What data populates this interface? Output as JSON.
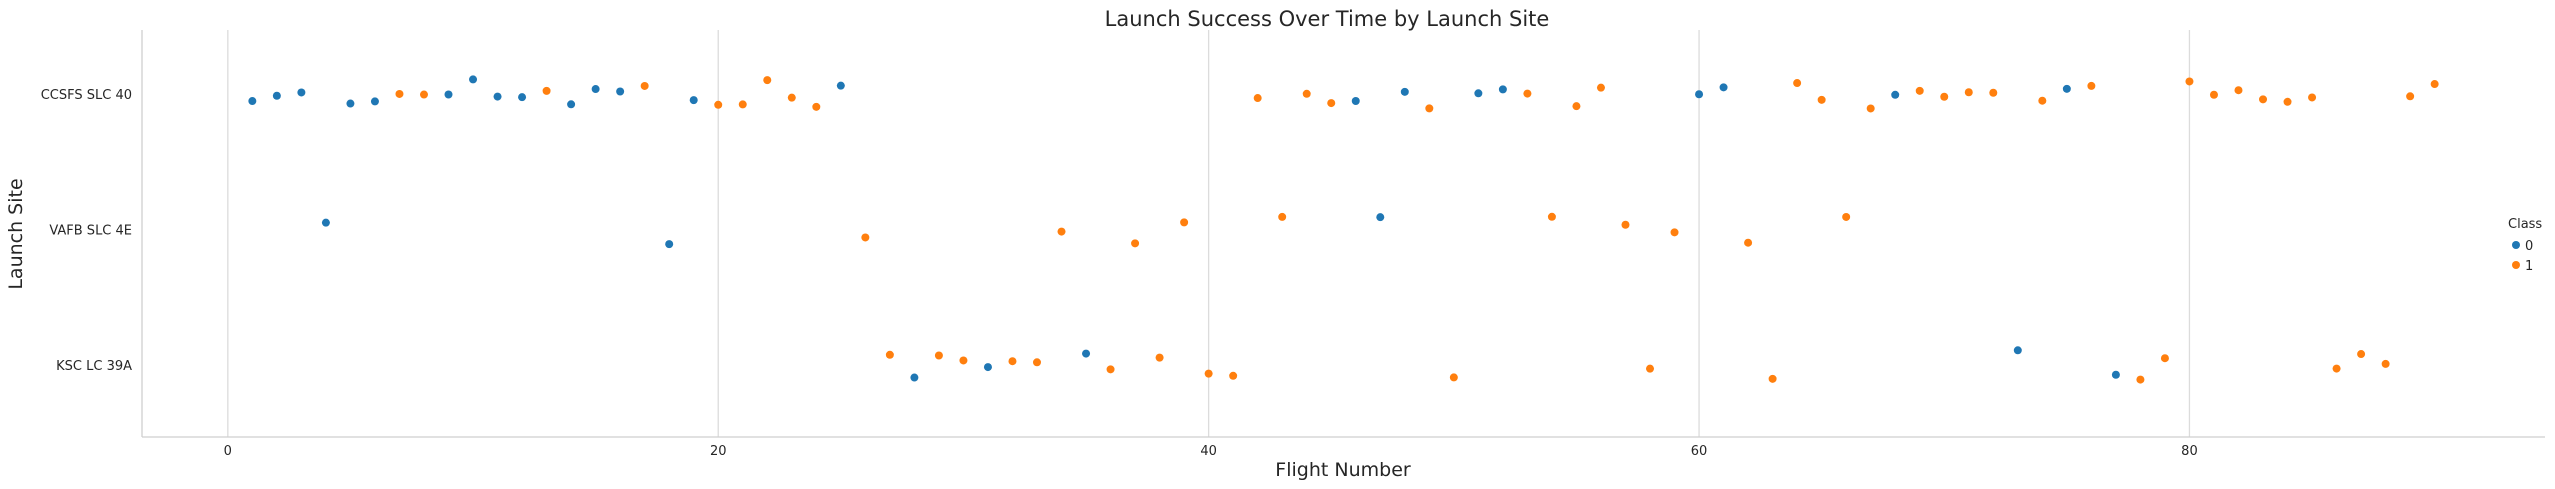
{
  "chart_data": {
    "type": "scatter",
    "title": "Launch Success Over Time by Launch Site",
    "xlabel": "Flight Number",
    "ylabel": "Launch Site",
    "xlim": [
      -3.5,
      94.5
    ],
    "xticks": [
      0,
      20,
      40,
      60,
      80
    ],
    "categories": [
      "CCSFS SLC 40",
      "VAFB SLC 4E",
      "KSC LC 39A"
    ],
    "grid": "vertical",
    "legend": {
      "title": "Class",
      "placement": "right",
      "entries": [
        "0",
        "1"
      ]
    },
    "colors": {
      "0": "#1f77b4",
      "1": "#ff7f0e"
    },
    "points": [
      {
        "x": 1,
        "site": "CCSFS SLC 40",
        "class": 0
      },
      {
        "x": 2,
        "site": "CCSFS SLC 40",
        "class": 0
      },
      {
        "x": 3,
        "site": "CCSFS SLC 40",
        "class": 0
      },
      {
        "x": 4,
        "site": "VAFB SLC 4E",
        "class": 0
      },
      {
        "x": 5,
        "site": "CCSFS SLC 40",
        "class": 0
      },
      {
        "x": 6,
        "site": "CCSFS SLC 40",
        "class": 0
      },
      {
        "x": 7,
        "site": "CCSFS SLC 40",
        "class": 1
      },
      {
        "x": 8,
        "site": "CCSFS SLC 40",
        "class": 1
      },
      {
        "x": 9,
        "site": "CCSFS SLC 40",
        "class": 0
      },
      {
        "x": 10,
        "site": "CCSFS SLC 40",
        "class": 0
      },
      {
        "x": 11,
        "site": "CCSFS SLC 40",
        "class": 0
      },
      {
        "x": 12,
        "site": "CCSFS SLC 40",
        "class": 0
      },
      {
        "x": 13,
        "site": "CCSFS SLC 40",
        "class": 1
      },
      {
        "x": 14,
        "site": "CCSFS SLC 40",
        "class": 0
      },
      {
        "x": 15,
        "site": "CCSFS SLC 40",
        "class": 0
      },
      {
        "x": 16,
        "site": "CCSFS SLC 40",
        "class": 0
      },
      {
        "x": 17,
        "site": "CCSFS SLC 40",
        "class": 1
      },
      {
        "x": 18,
        "site": "VAFB SLC 4E",
        "class": 0
      },
      {
        "x": 19,
        "site": "CCSFS SLC 40",
        "class": 0
      },
      {
        "x": 20,
        "site": "CCSFS SLC 40",
        "class": 1
      },
      {
        "x": 21,
        "site": "CCSFS SLC 40",
        "class": 1
      },
      {
        "x": 22,
        "site": "CCSFS SLC 40",
        "class": 1
      },
      {
        "x": 23,
        "site": "CCSFS SLC 40",
        "class": 1
      },
      {
        "x": 24,
        "site": "CCSFS SLC 40",
        "class": 1
      },
      {
        "x": 25,
        "site": "CCSFS SLC 40",
        "class": 0
      },
      {
        "x": 26,
        "site": "VAFB SLC 4E",
        "class": 1
      },
      {
        "x": 27,
        "site": "KSC LC 39A",
        "class": 1
      },
      {
        "x": 28,
        "site": "KSC LC 39A",
        "class": 0
      },
      {
        "x": 29,
        "site": "KSC LC 39A",
        "class": 1
      },
      {
        "x": 30,
        "site": "KSC LC 39A",
        "class": 1
      },
      {
        "x": 31,
        "site": "KSC LC 39A",
        "class": 0
      },
      {
        "x": 32,
        "site": "KSC LC 39A",
        "class": 1
      },
      {
        "x": 33,
        "site": "KSC LC 39A",
        "class": 1
      },
      {
        "x": 34,
        "site": "VAFB SLC 4E",
        "class": 1
      },
      {
        "x": 35,
        "site": "KSC LC 39A",
        "class": 0
      },
      {
        "x": 36,
        "site": "KSC LC 39A",
        "class": 1
      },
      {
        "x": 37,
        "site": "VAFB SLC 4E",
        "class": 1
      },
      {
        "x": 38,
        "site": "KSC LC 39A",
        "class": 1
      },
      {
        "x": 39,
        "site": "VAFB SLC 4E",
        "class": 1
      },
      {
        "x": 40,
        "site": "KSC LC 39A",
        "class": 1
      },
      {
        "x": 41,
        "site": "KSC LC 39A",
        "class": 1
      },
      {
        "x": 42,
        "site": "CCSFS SLC 40",
        "class": 1
      },
      {
        "x": 43,
        "site": "VAFB SLC 4E",
        "class": 1
      },
      {
        "x": 44,
        "site": "CCSFS SLC 40",
        "class": 1
      },
      {
        "x": 45,
        "site": "CCSFS SLC 40",
        "class": 1
      },
      {
        "x": 46,
        "site": "CCSFS SLC 40",
        "class": 0
      },
      {
        "x": 47,
        "site": "VAFB SLC 4E",
        "class": 0
      },
      {
        "x": 48,
        "site": "CCSFS SLC 40",
        "class": 0
      },
      {
        "x": 49,
        "site": "CCSFS SLC 40",
        "class": 1
      },
      {
        "x": 50,
        "site": "KSC LC 39A",
        "class": 1
      },
      {
        "x": 51,
        "site": "CCSFS SLC 40",
        "class": 0
      },
      {
        "x": 52,
        "site": "CCSFS SLC 40",
        "class": 0
      },
      {
        "x": 53,
        "site": "CCSFS SLC 40",
        "class": 1
      },
      {
        "x": 54,
        "site": "VAFB SLC 4E",
        "class": 1
      },
      {
        "x": 55,
        "site": "CCSFS SLC 40",
        "class": 1
      },
      {
        "x": 56,
        "site": "CCSFS SLC 40",
        "class": 1
      },
      {
        "x": 57,
        "site": "VAFB SLC 4E",
        "class": 1
      },
      {
        "x": 58,
        "site": "KSC LC 39A",
        "class": 1
      },
      {
        "x": 59,
        "site": "VAFB SLC 4E",
        "class": 1
      },
      {
        "x": 60,
        "site": "CCSFS SLC 40",
        "class": 0
      },
      {
        "x": 61,
        "site": "CCSFS SLC 40",
        "class": 0
      },
      {
        "x": 62,
        "site": "VAFB SLC 4E",
        "class": 1
      },
      {
        "x": 63,
        "site": "KSC LC 39A",
        "class": 1
      },
      {
        "x": 64,
        "site": "CCSFS SLC 40",
        "class": 1
      },
      {
        "x": 65,
        "site": "CCSFS SLC 40",
        "class": 1
      },
      {
        "x": 66,
        "site": "VAFB SLC 4E",
        "class": 1
      },
      {
        "x": 67,
        "site": "CCSFS SLC 40",
        "class": 1
      },
      {
        "x": 68,
        "site": "CCSFS SLC 40",
        "class": 0
      },
      {
        "x": 69,
        "site": "CCSFS SLC 40",
        "class": 1
      },
      {
        "x": 70,
        "site": "CCSFS SLC 40",
        "class": 1
      },
      {
        "x": 71,
        "site": "CCSFS SLC 40",
        "class": 1
      },
      {
        "x": 72,
        "site": "CCSFS SLC 40",
        "class": 1
      },
      {
        "x": 73,
        "site": "KSC LC 39A",
        "class": 0
      },
      {
        "x": 74,
        "site": "CCSFS SLC 40",
        "class": 1
      },
      {
        "x": 75,
        "site": "CCSFS SLC 40",
        "class": 0
      },
      {
        "x": 76,
        "site": "CCSFS SLC 40",
        "class": 1
      },
      {
        "x": 77,
        "site": "KSC LC 39A",
        "class": 0
      },
      {
        "x": 78,
        "site": "KSC LC 39A",
        "class": 1
      },
      {
        "x": 79,
        "site": "KSC LC 39A",
        "class": 1
      },
      {
        "x": 80,
        "site": "CCSFS SLC 40",
        "class": 1
      },
      {
        "x": 81,
        "site": "CCSFS SLC 40",
        "class": 1
      },
      {
        "x": 82,
        "site": "CCSFS SLC 40",
        "class": 1
      },
      {
        "x": 83,
        "site": "CCSFS SLC 40",
        "class": 1
      },
      {
        "x": 84,
        "site": "CCSFS SLC 40",
        "class": 1
      },
      {
        "x": 85,
        "site": "CCSFS SLC 40",
        "class": 1
      },
      {
        "x": 86,
        "site": "KSC LC 39A",
        "class": 1
      },
      {
        "x": 87,
        "site": "KSC LC 39A",
        "class": 1
      },
      {
        "x": 88,
        "site": "KSC LC 39A",
        "class": 1
      },
      {
        "x": 89,
        "site": "CCSFS SLC 40",
        "class": 1
      },
      {
        "x": 90,
        "site": "CCSFS SLC 40",
        "class": 1
      }
    ]
  }
}
